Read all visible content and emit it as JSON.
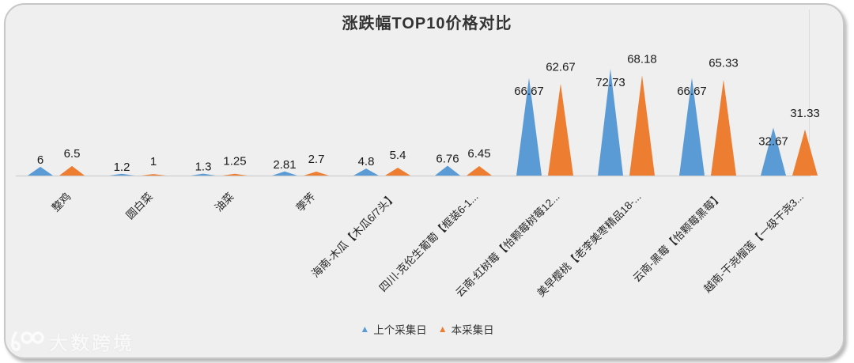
{
  "panel": {
    "background": "#efefef",
    "border_color": "#c7c7c7"
  },
  "title": "涨跌幅TOP10价格对比",
  "legend": {
    "items": [
      {
        "label": "上个采集日",
        "color": "#5b9bd5",
        "marker": "triangle"
      },
      {
        "label": "本采集日",
        "color": "#ed7d31",
        "marker": "triangle"
      }
    ],
    "marker_glyph": "▲"
  },
  "watermark": {
    "logo_text": "100",
    "brand_text": "大数跨境"
  },
  "colors": {
    "series_prev": "#5b9bd5",
    "series_current": "#ed7d31",
    "axis_line": "#d2d2d2",
    "value_label_text": "#1a1a1a",
    "category_label_text": "#262626"
  },
  "chart_data": {
    "type": "bar",
    "bar_shape": "triangle",
    "title": "涨跌幅TOP10价格对比",
    "categories": [
      "整鸡",
      "圆白菜",
      "油菜",
      "荸荠",
      "海南-木瓜【木瓜6/7头】",
      "四川-克伦生葡萄【框装6-1...",
      "云南-红树莓【怡颗莓树莓12...",
      "美早樱桃【老李美枣精品18-...",
      "云南-黑莓【怡颗莓黑莓】",
      "越南-干尧榴莲【一级干尧3..."
    ],
    "series": [
      {
        "name": "上个采集日",
        "color": "#5b9bd5",
        "values": [
          6,
          1.2,
          1.3,
          2.81,
          4.8,
          6.76,
          66.67,
          72.73,
          66.67,
          32.67
        ]
      },
      {
        "name": "本采集日",
        "color": "#ed7d31",
        "values": [
          6.5,
          1,
          1.25,
          2.7,
          5.4,
          6.45,
          62.67,
          68.18,
          65.33,
          31.33
        ]
      }
    ],
    "ylim": [
      0,
      80
    ],
    "grid": false,
    "legend_position": "bottom",
    "value_labels_visible": true
  }
}
